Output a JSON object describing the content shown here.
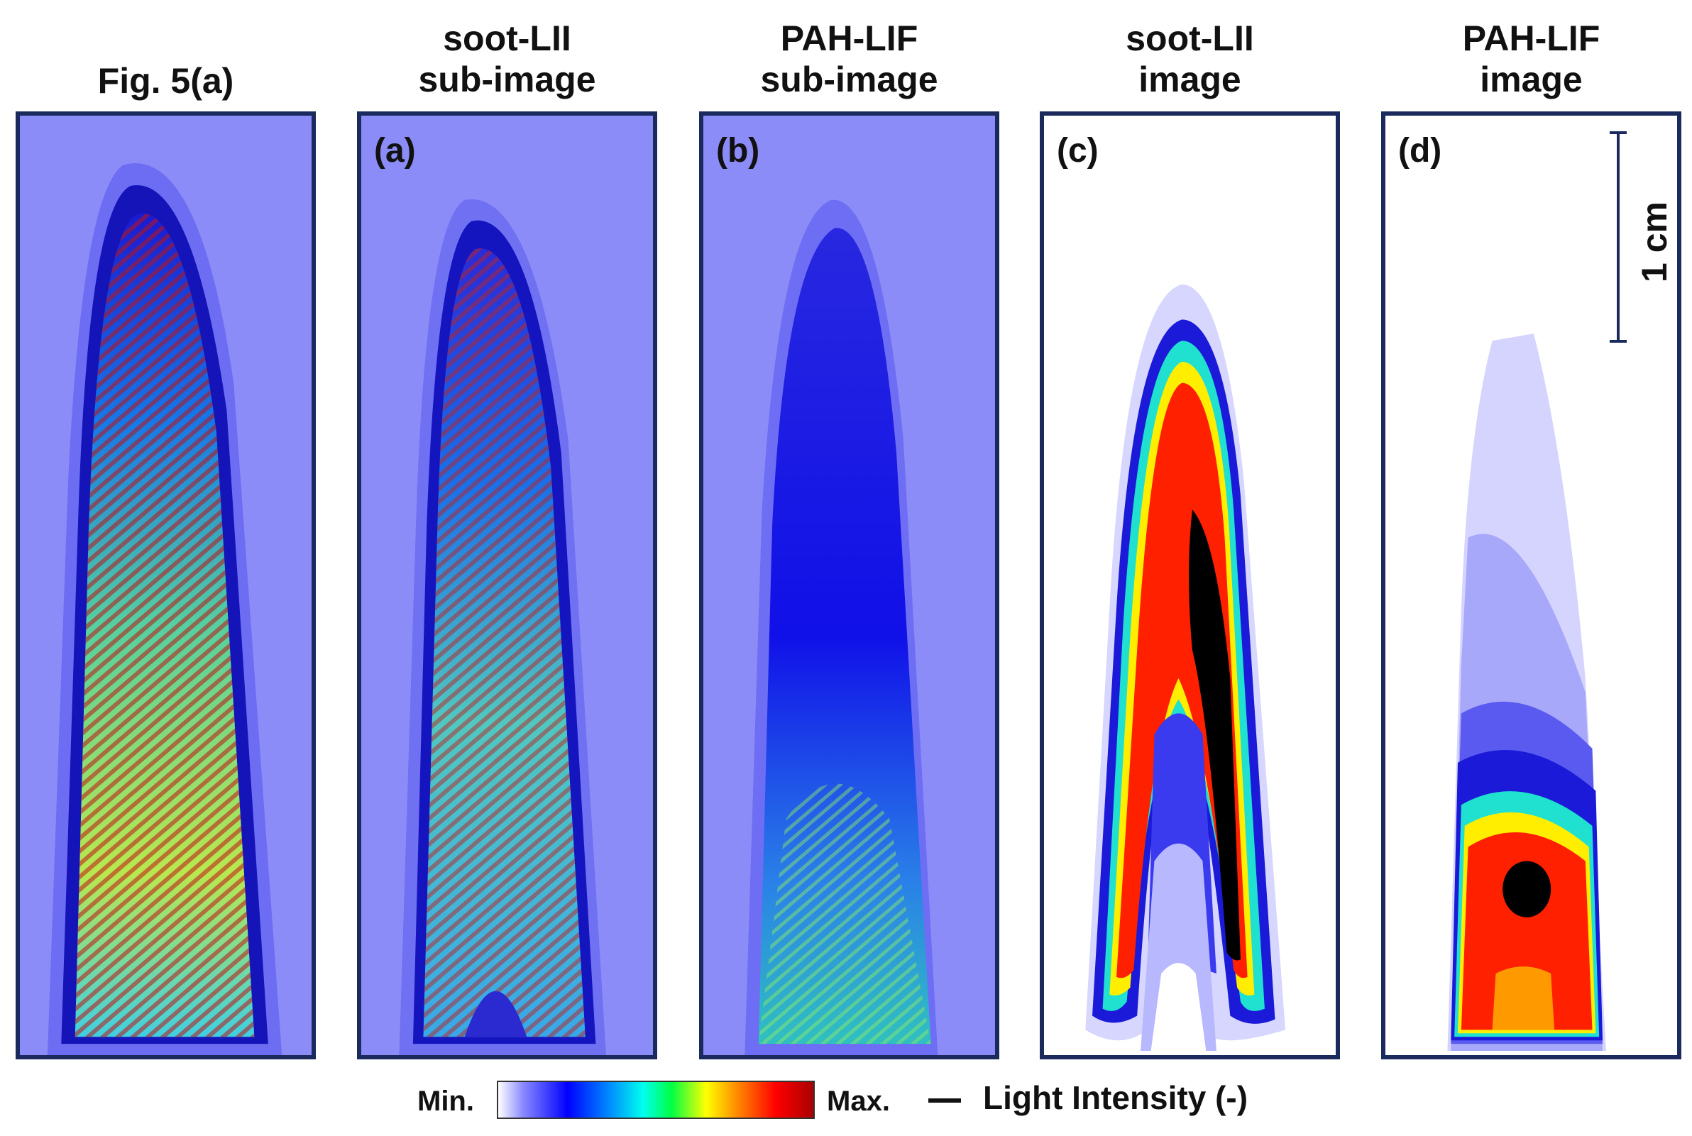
{
  "titles": {
    "fig": "Fig. 5(a)",
    "soot_sub_1": "soot-LII",
    "soot_sub_2": "sub-image",
    "pah_sub_1": "PAH-LIF",
    "pah_sub_2": "sub-image",
    "soot_img_1": "soot-LII",
    "soot_img_2": "image",
    "pah_img_1": "PAH-LIF",
    "pah_img_2": "image"
  },
  "panels": {
    "a": "(a)",
    "b": "(b)",
    "c": "(c)",
    "d": "(d)"
  },
  "scale": "1 cm",
  "legend": {
    "min": "Min.",
    "max": "Max.",
    "caption": "Light Intensity (-)"
  },
  "colors": {
    "frame": "#1a2a5c",
    "background_blue": "#8c8cf8"
  }
}
